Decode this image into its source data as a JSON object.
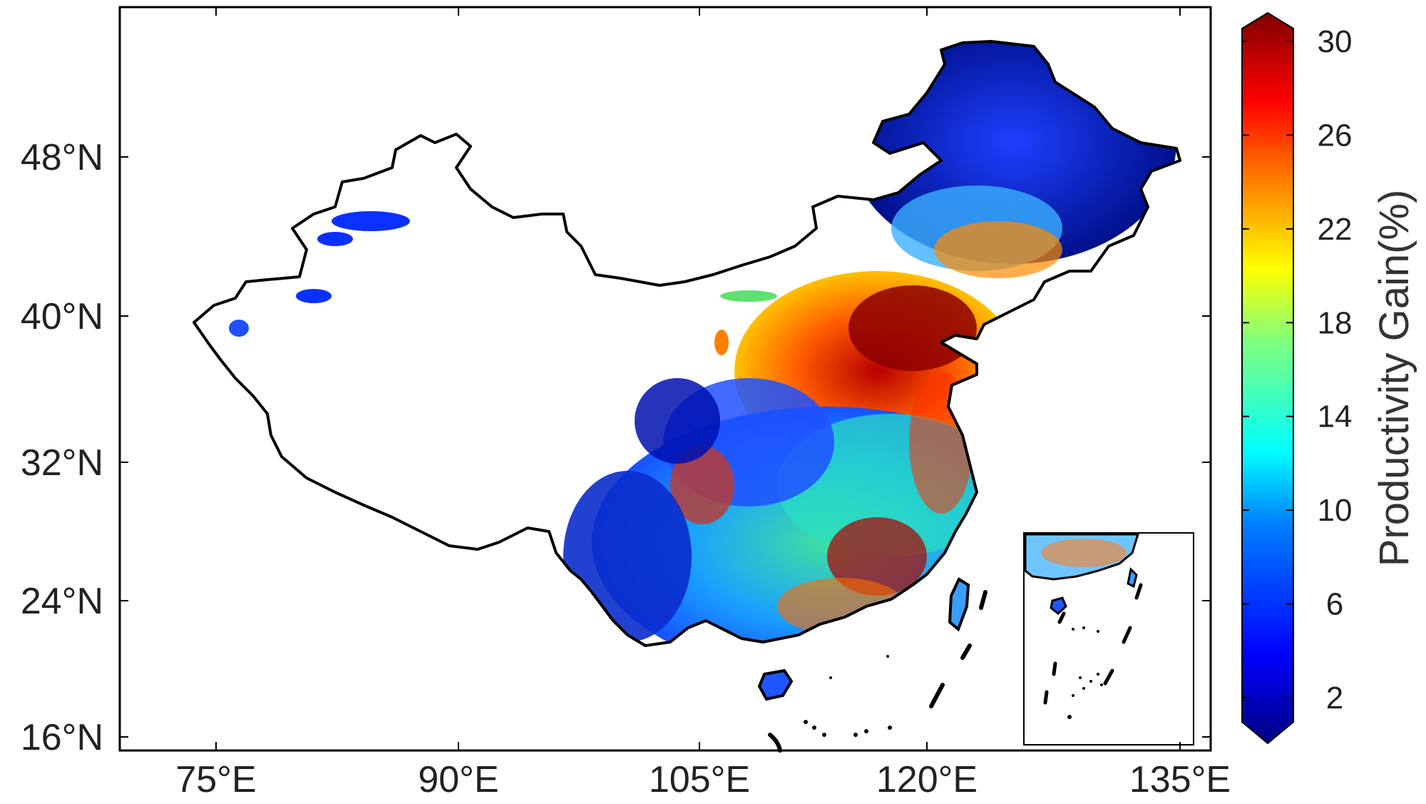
{
  "map": {
    "x_ticks": [
      "75°E",
      "90°E",
      "105°E",
      "120°E",
      "135°E"
    ],
    "y_ticks": [
      "48°N",
      "40°N",
      "32°N",
      "24°N",
      "16°N"
    ]
  },
  "colorbar": {
    "title": "Productivity Gain(%)",
    "ticks": [
      "30",
      "26",
      "22",
      "18",
      "14",
      "10",
      "6",
      "2"
    ],
    "range": [
      0,
      30
    ],
    "colormap": [
      "#00007f",
      "#0000ff",
      "#007fff",
      "#00ffff",
      "#7fff7f",
      "#ffff00",
      "#ff7f00",
      "#ff0000",
      "#7f0000"
    ]
  },
  "colors": {
    "border": "#000000",
    "background": "#ffffff"
  }
}
